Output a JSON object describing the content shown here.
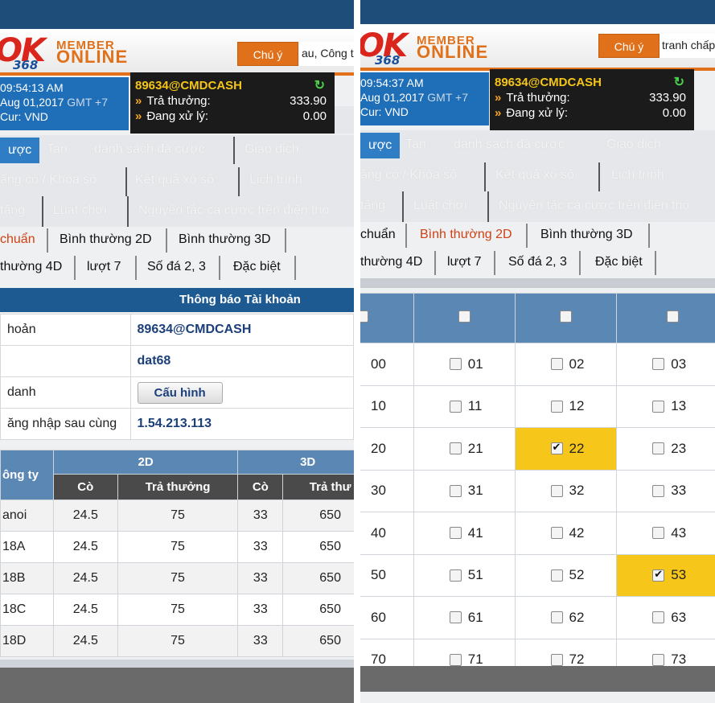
{
  "left": {
    "logo": {
      "ok": "OK",
      "num": "368",
      "member": "MEMBER",
      "online": "ONLINE"
    },
    "notice_button": "Chú ý",
    "marquee": "au, Công t",
    "time": "09:54:13 AM",
    "date": "Aug 01,2017",
    "gmt": "GMT +7",
    "currency": "Cur: VND",
    "account": {
      "user": "89634@CMDCASH",
      "payout_label": "Trả thưởng:",
      "payout_value": "333.90",
      "pending_label": "Đang xử lý:",
      "pending_value": "0.00"
    },
    "nav1": [
      "ược",
      "Tan",
      "danh sách đã cược",
      "Giao dịch"
    ],
    "nav2": [
      "ặng cò / Khóa số",
      "Kết quả xổ số",
      "Lịch trình"
    ],
    "nav3": [
      "tặng",
      "Luật chơi",
      "Nguyên tắc cá cược trên điện tho"
    ],
    "tabs1": [
      "chuẩn",
      "Bình thường 2D",
      "Bình thường 3D"
    ],
    "tabs2": [
      "thường 4D",
      "lượt 7",
      "Số đá 2, 3",
      "Đặc biệt"
    ],
    "section_title": "Thông báo Tài khoản",
    "info": [
      {
        "label": "hoản",
        "value": "89634@CMDCASH"
      },
      {
        "label": "",
        "value": "dat68"
      },
      {
        "label": "danh",
        "value": ""
      },
      {
        "label": "ăng nhập sau cùng",
        "value": "1.54.213.113"
      }
    ],
    "config_button": "Cấu hình",
    "rates": {
      "company_header": "ông ty",
      "group_2d": "2D",
      "group_3d": "3D",
      "sub_headers": [
        "Cò",
        "Trả thưởng",
        "Cò",
        "Trả thư"
      ],
      "rows": [
        {
          "name": "anoi",
          "c2": "24.5",
          "t2": "75",
          "c3": "33",
          "t3": "650"
        },
        {
          "name": "18A",
          "c2": "24.5",
          "t2": "75",
          "c3": "33",
          "t3": "650"
        },
        {
          "name": "18B",
          "c2": "24.5",
          "t2": "75",
          "c3": "33",
          "t3": "650"
        },
        {
          "name": "18C",
          "c2": "24.5",
          "t2": "75",
          "c3": "33",
          "t3": "650"
        },
        {
          "name": "18D",
          "c2": "24.5",
          "t2": "75",
          "c3": "33",
          "t3": "650"
        }
      ]
    }
  },
  "right": {
    "logo": {
      "ok": "OK",
      "num": "368",
      "member": "MEMBER",
      "online": "ONLINE"
    },
    "notice_button": "Chú ý",
    "marquee": "tranh chấp",
    "time": "09:54:37 AM",
    "date": "Aug 01,2017",
    "gmt": "GMT +7",
    "currency": "Cur: VND",
    "account": {
      "user": "89634@CMDCASH",
      "payout_label": "Trả thưởng:",
      "payout_value": "333.90",
      "pending_label": "Đang xử lý:",
      "pending_value": "0.00"
    },
    "nav1": [
      "ược",
      "Tan",
      "danh sách đã cược",
      "Giao dịch"
    ],
    "nav2": [
      "ặng cò / Khóa số",
      "Kết quả xổ số",
      "Lịch trình"
    ],
    "nav3": [
      "tặng",
      "Luật chơi",
      "Nguyên tắc cá cược trên điện tho"
    ],
    "tabs1": [
      "chuẩn",
      "Bình thường 2D",
      "Bình thường 3D"
    ],
    "tabs2": [
      "thường 4D",
      "lượt 7",
      "Số đá 2, 3",
      "Đặc biệt"
    ],
    "number_rows": [
      [
        "00",
        "01",
        "02",
        "03"
      ],
      [
        "10",
        "11",
        "12",
        "13"
      ],
      [
        "20",
        "21",
        "22",
        "23"
      ],
      [
        "30",
        "31",
        "32",
        "33"
      ],
      [
        "40",
        "41",
        "42",
        "43"
      ],
      [
        "50",
        "51",
        "52",
        "53"
      ],
      [
        "60",
        "61",
        "62",
        "63"
      ],
      [
        "70",
        "71",
        "72",
        "73"
      ]
    ],
    "selected_numbers": [
      "22",
      "53"
    ],
    "highlight_color": "#f7c61a"
  }
}
